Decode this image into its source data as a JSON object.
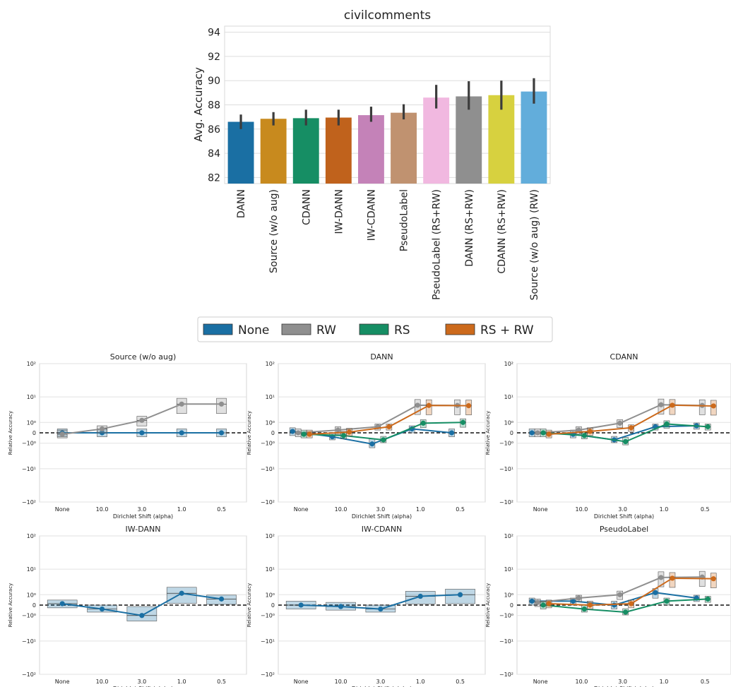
{
  "chart_data": [
    {
      "type": "bar",
      "title": "civilcomments",
      "ylabel": "Avg. Accuracy",
      "ylim": [
        81.5,
        94.5
      ],
      "yticks": [
        82,
        84,
        86,
        88,
        90,
        92,
        94
      ],
      "grid": true,
      "categories": [
        "DANN",
        "Source (w/o aug)",
        "CDANN",
        "IW-DANN",
        "IW-CDANN",
        "PseudoLabel",
        "PseudoLabel (RS+RW)",
        "DANN (RS+RW)",
        "CDANN (RS+RW)",
        "Source (w/o aug) (RW)"
      ],
      "values": [
        86.6,
        86.85,
        86.9,
        86.95,
        87.15,
        87.35,
        88.6,
        88.7,
        88.8,
        89.1
      ],
      "err_low": [
        86.0,
        86.3,
        86.3,
        86.3,
        86.6,
        86.8,
        87.7,
        87.6,
        87.6,
        88.1
      ],
      "err_high": [
        87.2,
        87.4,
        87.6,
        87.6,
        87.85,
        88.05,
        89.65,
        89.95,
        90.0,
        90.2
      ],
      "colors": [
        "#1a6fa3",
        "#c88a1e",
        "#168e64",
        "#c0621c",
        "#c482b8",
        "#c09270",
        "#f1b8e0",
        "#8f8f8f",
        "#d7d13f",
        "#62addb"
      ]
    },
    {
      "type": "legend",
      "entries": [
        {
          "name": "None",
          "color": "#1a6fa3"
        },
        {
          "name": "RW",
          "color": "#8f8f8f"
        },
        {
          "name": "RS",
          "color": "#168e64"
        },
        {
          "name": "RS + RW",
          "color": "#cc6a1c"
        }
      ]
    },
    {
      "type": "line",
      "panels": [
        {
          "title": "Source (w/o aug)",
          "series": [
            {
              "name": "None",
              "values": [
                0,
                0,
                0,
                0,
                0
              ]
            },
            {
              "name": "RW",
              "values": [
                -0.1,
                0.3,
                1.3,
                5.8,
                5.8
              ]
            }
          ]
        },
        {
          "title": "DANN",
          "series": [
            {
              "name": "None",
              "values": [
                0.1,
                -0.3,
                -1.1,
                0.3,
                0
              ]
            },
            {
              "name": "RW",
              "values": [
                0,
                0.2,
                0.5,
                5.3,
                5.2
              ]
            },
            {
              "name": "RS",
              "values": [
                -0.1,
                -0.2,
                -0.6,
                0.9,
                1.0
              ]
            },
            {
              "name": "RS + RW",
              "values": [
                -0.1,
                0.05,
                0.5,
                5.2,
                5.1
              ]
            }
          ]
        },
        {
          "title": "CDANN",
          "series": [
            {
              "name": "None",
              "values": [
                0,
                -0.1,
                -0.6,
                0.5,
                0.6
              ]
            },
            {
              "name": "RW",
              "values": [
                0,
                0.2,
                0.9,
                5.5,
                5.2
              ]
            },
            {
              "name": "RS",
              "values": [
                0,
                -0.2,
                -0.8,
                0.8,
                0.5
              ]
            },
            {
              "name": "RS + RW",
              "values": [
                -0.1,
                0.1,
                0.4,
                5.3,
                5.0
              ]
            }
          ]
        },
        {
          "title": "IW-DANN",
          "series": [
            {
              "name": "None",
              "values": [
                0.1,
                -0.3,
                -1.0,
                1.2,
                0.5
              ]
            }
          ]
        },
        {
          "title": "IW-CDANN",
          "series": [
            {
              "name": "None",
              "values": [
                0,
                -0.1,
                -0.3,
                0.8,
                1.0
              ]
            }
          ]
        },
        {
          "title": "PseudoLabel",
          "series": [
            {
              "name": "None",
              "values": [
                0.3,
                0.3,
                0,
                1.3,
                0.6
              ]
            },
            {
              "name": "RW",
              "values": [
                0.2,
                0.6,
                1.0,
                5.3,
                5.5
              ]
            },
            {
              "name": "RS",
              "values": [
                0,
                -0.3,
                -0.6,
                0.3,
                0.5
              ]
            },
            {
              "name": "RS + RW",
              "values": [
                0.1,
                0,
                0.1,
                5.0,
                4.8
              ]
            }
          ]
        }
      ],
      "xlabel": "Dirichlet Shift (alpha)",
      "categories": [
        "None",
        "10.0",
        "3.0",
        "1.0",
        "0.5"
      ],
      "ylabel": "Relative Accuracy",
      "yscale": "symlog",
      "yticks": [
        "10²",
        "10¹",
        "10⁰",
        "0",
        "−10⁰",
        "−10¹",
        "−10²"
      ]
    }
  ]
}
